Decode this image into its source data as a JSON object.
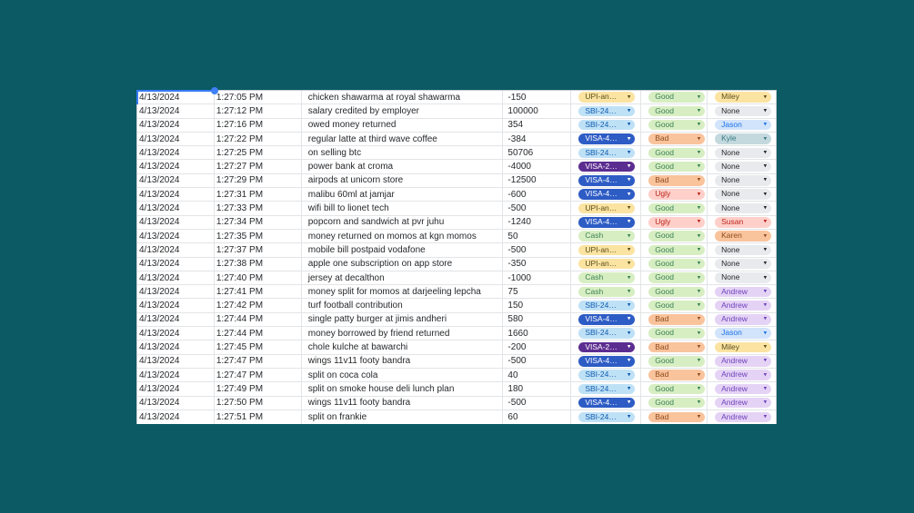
{
  "canvas": {
    "background_color": "#0b5a64"
  },
  "selection": {
    "accent_color": "#377bf2",
    "handle_color": "#3f80f6"
  },
  "sheet": {
    "columns": [
      "date",
      "time",
      "description",
      "amount",
      "payment_method",
      "rating",
      "person"
    ],
    "chip_palette": {
      "yellow": {
        "bg": "#fbe3a1",
        "fg": "#5b4f1d"
      },
      "lightblue": {
        "bg": "#bfe1f6",
        "fg": "#0f5bb0"
      },
      "darkblue": {
        "bg": "#2e5cc5",
        "fg": "#ffffff"
      },
      "purple": {
        "bg": "#5c2d91",
        "fg": "#ffffff"
      },
      "green": {
        "bg": "#d7eec2",
        "fg": "#3a8055"
      },
      "orange": {
        "bg": "#f9c39c",
        "fg": "#8f4c1d"
      },
      "red": {
        "bg": "#ffcfc9",
        "fg": "#ba241c"
      },
      "gray": {
        "bg": "#e9eaed",
        "fg": "#26282b"
      },
      "blue": {
        "bg": "#d2e3fc",
        "fg": "#1a73e8"
      },
      "teal": {
        "bg": "#c3d9de",
        "fg": "#3c7a85"
      },
      "lightpurple": {
        "bg": "#e5d3f5",
        "fg": "#6d42bb"
      }
    },
    "rows": [
      {
        "date": "4/13/2024",
        "time": "1:27:05 PM",
        "description": "chicken shawarma at royal shawarma",
        "amount": "-150",
        "payment": {
          "label": "UPI-an…",
          "color": "yellow"
        },
        "rating": {
          "label": "Good",
          "color": "green"
        },
        "person": {
          "label": "Miley",
          "color": "yellow"
        }
      },
      {
        "date": "4/13/2024",
        "time": "1:27:12 PM",
        "description": "salary credited by employer",
        "amount": "100000",
        "payment": {
          "label": "SBI-24…",
          "color": "lightblue"
        },
        "rating": {
          "label": "Good",
          "color": "green"
        },
        "person": {
          "label": "None",
          "color": "gray"
        }
      },
      {
        "date": "4/13/2024",
        "time": "1:27:16 PM",
        "description": "owed money returned",
        "amount": "354",
        "payment": {
          "label": "SBI-24…",
          "color": "lightblue"
        },
        "rating": {
          "label": "Good",
          "color": "green"
        },
        "person": {
          "label": "Jason",
          "color": "blue"
        }
      },
      {
        "date": "4/13/2024",
        "time": "1:27:22 PM",
        "description": "regular latte at third wave coffee",
        "amount": "-384",
        "payment": {
          "label": "VISA-4…",
          "color": "darkblue"
        },
        "rating": {
          "label": "Bad",
          "color": "orange"
        },
        "person": {
          "label": "Kyle",
          "color": "teal"
        }
      },
      {
        "date": "4/13/2024",
        "time": "1:27:25 PM",
        "description": "on selling btc",
        "amount": "50706",
        "payment": {
          "label": "SBI-24…",
          "color": "lightblue"
        },
        "rating": {
          "label": "Good",
          "color": "green"
        },
        "person": {
          "label": "None",
          "color": "gray"
        }
      },
      {
        "date": "4/13/2024",
        "time": "1:27:27 PM",
        "description": "power bank at croma",
        "amount": "-4000",
        "payment": {
          "label": "VISA-2…",
          "color": "purple"
        },
        "rating": {
          "label": "Good",
          "color": "green"
        },
        "person": {
          "label": "None",
          "color": "gray"
        }
      },
      {
        "date": "4/13/2024",
        "time": "1:27:29 PM",
        "description": "airpods at unicorn store",
        "amount": "-12500",
        "payment": {
          "label": "VISA-4…",
          "color": "darkblue"
        },
        "rating": {
          "label": "Bad",
          "color": "orange"
        },
        "person": {
          "label": "None",
          "color": "gray"
        }
      },
      {
        "date": "4/13/2024",
        "time": "1:27:31 PM",
        "description": "malibu 60ml at jamjar",
        "amount": "-600",
        "payment": {
          "label": "VISA-4…",
          "color": "darkblue"
        },
        "rating": {
          "label": "Ugly",
          "color": "red"
        },
        "person": {
          "label": "None",
          "color": "gray"
        }
      },
      {
        "date": "4/13/2024",
        "time": "1:27:33 PM",
        "description": "wifi bill to lionet tech",
        "amount": "-500",
        "payment": {
          "label": "UPI-an…",
          "color": "yellow"
        },
        "rating": {
          "label": "Good",
          "color": "green"
        },
        "person": {
          "label": "None",
          "color": "gray"
        }
      },
      {
        "date": "4/13/2024",
        "time": "1:27:34 PM",
        "description": "popcorn and sandwich at pvr juhu",
        "amount": "-1240",
        "payment": {
          "label": "VISA-4…",
          "color": "darkblue"
        },
        "rating": {
          "label": "Ugly",
          "color": "red"
        },
        "person": {
          "label": "Susan",
          "color": "red"
        }
      },
      {
        "date": "4/13/2024",
        "time": "1:27:35 PM",
        "description": "money returned on momos at kgn momos",
        "amount": "50",
        "payment": {
          "label": "Cash",
          "color": "green"
        },
        "rating": {
          "label": "Good",
          "color": "green"
        },
        "person": {
          "label": "Karen",
          "color": "orange"
        }
      },
      {
        "date": "4/13/2024",
        "time": "1:27:37 PM",
        "description": "mobile bill postpaid vodafone",
        "amount": "-500",
        "payment": {
          "label": "UPI-an…",
          "color": "yellow"
        },
        "rating": {
          "label": "Good",
          "color": "green"
        },
        "person": {
          "label": "None",
          "color": "gray"
        }
      },
      {
        "date": "4/13/2024",
        "time": "1:27:38 PM",
        "description": "apple one subscription on app store",
        "amount": "-350",
        "payment": {
          "label": "UPI-an…",
          "color": "yellow"
        },
        "rating": {
          "label": "Good",
          "color": "green"
        },
        "person": {
          "label": "None",
          "color": "gray"
        }
      },
      {
        "date": "4/13/2024",
        "time": "1:27:40 PM",
        "description": "jersey at decalthon",
        "amount": "-1000",
        "payment": {
          "label": "Cash",
          "color": "green"
        },
        "rating": {
          "label": "Good",
          "color": "green"
        },
        "person": {
          "label": "None",
          "color": "gray"
        }
      },
      {
        "date": "4/13/2024",
        "time": "1:27:41 PM",
        "description": "money split for momos at darjeeling lepcha",
        "amount": "75",
        "payment": {
          "label": "Cash",
          "color": "green"
        },
        "rating": {
          "label": "Good",
          "color": "green"
        },
        "person": {
          "label": "Andrew",
          "color": "lightpurple"
        }
      },
      {
        "date": "4/13/2024",
        "time": "1:27:42 PM",
        "description": "turf football contribution",
        "amount": "150",
        "payment": {
          "label": "SBI-24…",
          "color": "lightblue"
        },
        "rating": {
          "label": "Good",
          "color": "green"
        },
        "person": {
          "label": "Andrew",
          "color": "lightpurple"
        }
      },
      {
        "date": "4/13/2024",
        "time": "1:27:44 PM",
        "description": "single patty burger at jimis andheri",
        "amount": "580",
        "payment": {
          "label": "VISA-4…",
          "color": "darkblue"
        },
        "rating": {
          "label": "Bad",
          "color": "orange"
        },
        "person": {
          "label": "Andrew",
          "color": "lightpurple"
        }
      },
      {
        "date": "4/13/2024",
        "time": "1:27:44 PM",
        "description": "money borrowed by friend returned",
        "amount": "1660",
        "payment": {
          "label": "SBI-24…",
          "color": "lightblue"
        },
        "rating": {
          "label": "Good",
          "color": "green"
        },
        "person": {
          "label": "Jason",
          "color": "blue"
        }
      },
      {
        "date": "4/13/2024",
        "time": "1:27:45 PM",
        "description": "chole kulche at bawarchi",
        "amount": "-200",
        "payment": {
          "label": "VISA-2…",
          "color": "purple"
        },
        "rating": {
          "label": "Bad",
          "color": "orange"
        },
        "person": {
          "label": "Miley",
          "color": "yellow"
        }
      },
      {
        "date": "4/13/2024",
        "time": "1:27:47 PM",
        "description": "wings 11v11 footy bandra",
        "amount": "-500",
        "payment": {
          "label": "VISA-4…",
          "color": "darkblue"
        },
        "rating": {
          "label": "Good",
          "color": "green"
        },
        "person": {
          "label": "Andrew",
          "color": "lightpurple"
        }
      },
      {
        "date": "4/13/2024",
        "time": "1:27:47 PM",
        "description": "split on coca cola",
        "amount": "40",
        "payment": {
          "label": "SBI-24…",
          "color": "lightblue"
        },
        "rating": {
          "label": "Bad",
          "color": "orange"
        },
        "person": {
          "label": "Andrew",
          "color": "lightpurple"
        }
      },
      {
        "date": "4/13/2024",
        "time": "1:27:49 PM",
        "description": "split on smoke house deli lunch plan",
        "amount": "180",
        "payment": {
          "label": "SBI-24…",
          "color": "lightblue"
        },
        "rating": {
          "label": "Good",
          "color": "green"
        },
        "person": {
          "label": "Andrew",
          "color": "lightpurple"
        }
      },
      {
        "date": "4/13/2024",
        "time": "1:27:50 PM",
        "description": "wings 11v11 footy bandra",
        "amount": "-500",
        "payment": {
          "label": "VISA-4…",
          "color": "darkblue"
        },
        "rating": {
          "label": "Good",
          "color": "green"
        },
        "person": {
          "label": "Andrew",
          "color": "lightpurple"
        }
      },
      {
        "date": "4/13/2024",
        "time": "1:27:51 PM",
        "description": "split on frankie",
        "amount": "60",
        "payment": {
          "label": "SBI-24…",
          "color": "lightblue"
        },
        "rating": {
          "label": "Bad",
          "color": "orange"
        },
        "person": {
          "label": "Andrew",
          "color": "lightpurple"
        }
      }
    ]
  },
  "icons": {
    "dropdown_arrow": "▾"
  }
}
